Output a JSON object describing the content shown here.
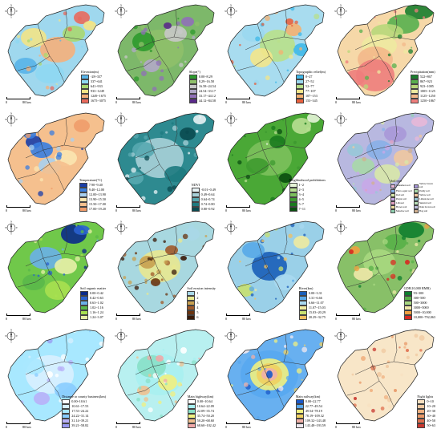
{
  "scale_labels": [
    "0",
    "80 km"
  ],
  "north_letters": [
    "N",
    "W",
    "E",
    "S"
  ],
  "panels": [
    {
      "id": "elevation",
      "title": "Elevation(m)",
      "classes": [
        "-28~337",
        "337~641",
        "641~933",
        "933~1249",
        "1249~1675",
        "1675~3075"
      ],
      "colors": [
        "#58b4e8",
        "#8ed8f2",
        "#a8d870",
        "#f2e486",
        "#f5b07a",
        "#e86a5c"
      ],
      "base": "#9fd8ee"
    },
    {
      "id": "slope",
      "title": "Slope(°)",
      "classes": [
        "0.00~8.29",
        "8.29~16.58",
        "16.58~24.54",
        "24.54~33.17",
        "33.17~44.12",
        "44.12~84.58"
      ],
      "colors": [
        "#2d9a2d",
        "#8fc06a",
        "#c8c8c8",
        "#b0a8c8",
        "#9070b8",
        "#5a2a8a"
      ],
      "base": "#7db86a"
    },
    {
      "id": "relief",
      "title": "Topographic relief(m)",
      "classes": [
        "0~27",
        "27~52",
        "52~77",
        "77~107",
        "107~153",
        "153~345"
      ],
      "colors": [
        "#3fb8e8",
        "#9ad8ef",
        "#b8e08a",
        "#f3e58a",
        "#f4b070",
        "#e8603e"
      ],
      "base": "#a8dcef"
    },
    {
      "id": "precip",
      "title": "Precipitation(mm)",
      "classes": [
        "522~867",
        "867~923",
        "923~1005",
        "1005~1125",
        "1125~1250",
        "1250~1867"
      ],
      "colors": [
        "#1a7e2e",
        "#58b04e",
        "#b8d87a",
        "#eeeaa0",
        "#f3b88a",
        "#ee7e7c"
      ],
      "base": "#f6d8a8"
    },
    {
      "id": "temp",
      "title": "Temperature(°C)",
      "classes": [
        "7.90~9.40",
        "9.40~12.00",
        "12.00~13.90",
        "13.90~15.50",
        "15.50~17.00",
        "17.00~19.20"
      ],
      "colors": [
        "#1a3ea8",
        "#3a7ee0",
        "#a8d0f0",
        "#fbe6b0",
        "#f5c08e",
        "#f09c6a"
      ],
      "base": "#f5c08e"
    },
    {
      "id": "ndvi",
      "title": "NDVI",
      "classes": [
        "-0.01~0.49",
        "0.49~0.64",
        "0.64~0.74",
        "0.74~0.80",
        "0.80~0.92"
      ],
      "colors": [
        "#e8f2f5",
        "#a8d0d8",
        "#58a8b0",
        "#1e7a80",
        "#0a4a50"
      ],
      "base": "#2e8a90"
    },
    {
      "id": "prohibit",
      "title": "Neighborhood prohibitions",
      "classes": [
        "1~2",
        "2~3",
        "3~4",
        "4~5",
        "5~7",
        "7~11"
      ],
      "colors": [
        "#e6f4d8",
        "#b8de92",
        "#7cc05c",
        "#3e9a30",
        "#1a7a1e",
        "#0a4e10"
      ],
      "base": "#4aa836"
    },
    {
      "id": "soil",
      "title": "Soil type",
      "classes": [
        "Cinnamon soil",
        "Yellow brown soil",
        "Fluvo-aquic soil",
        "Paddy soil",
        "Red soil",
        "Yellow soil",
        "Purple soil",
        "Limestone soil",
        "Lithosol",
        "Skeletal soil",
        "Brown soil",
        "Dark brown soil",
        "Meadow soil",
        "Bog soil"
      ],
      "colors": [
        "#e8b8d8",
        "#a898d8",
        "#88b0e8",
        "#a8d8a8",
        "#d8e8a8",
        "#f0c8a0",
        "#c8a8e8",
        "#98c8d8",
        "#e0a0c0",
        "#b8e0b8",
        "#f0e0a0",
        "#c0c0e0",
        "#90d0b0",
        "#d0b090"
      ],
      "base": "#b8b8e0"
    },
    {
      "id": "som",
      "title": "Soil organic matter",
      "classes": [
        "0.00~0.42",
        "0.42~0.63",
        "0.63~1.02",
        "1.02~1.16",
        "1.16~1.24",
        "1.24~3.07"
      ],
      "colors": [
        "#0a2a8a",
        "#2a62d0",
        "#6ab0e8",
        "#5ab84a",
        "#a8e050",
        "#e8f0a8"
      ],
      "base": "#70c84a"
    },
    {
      "id": "erosion",
      "title": "Soil erosion intensity",
      "classes": [
        "1",
        "2",
        "3",
        "4",
        "5",
        "6"
      ],
      "colors": [
        "#a8d8e8",
        "#e8e890",
        "#c8a050",
        "#a05a2a",
        "#6a3410",
        "#3a1a08"
      ],
      "base": "#a8d8e0"
    },
    {
      "id": "river",
      "title": "River(km)",
      "classes": [
        "0.00~3.31",
        "3.31~6.66",
        "6.66~11.07",
        "11.07~15.03",
        "15.03~20.29",
        "20.29~32.75"
      ],
      "colors": [
        "#1a5eb8",
        "#58a8e8",
        "#a8d8f0",
        "#eeeaa0",
        "#c8e070",
        "#f0c060"
      ],
      "base": "#9ad0e8"
    },
    {
      "id": "gdp",
      "title": "GDP(10,000 RMB)",
      "classes": [
        "93~300",
        "300~500",
        "500~3000",
        "3000~5000",
        "5000~10,000",
        "10,000~792,063"
      ],
      "colors": [
        "#0e7e2e",
        "#58b048",
        "#a8d880",
        "#f0e8a8",
        "#f0a040",
        "#d82820"
      ],
      "base": "#88c068"
    },
    {
      "id": "railway",
      "title": "Distance to county business(km)",
      "classes": [
        "0.00~10.61",
        "10.61~17.53",
        "17.53~24.22",
        "24.22~31.14",
        "31.14~39.21",
        "39.21~58.82"
      ],
      "colors": [
        "#ffffff",
        "#d8f0ff",
        "#a8e8ff",
        "#88ccff",
        "#b8b0f8",
        "#9898f0"
      ],
      "base": "#a8e8ff"
    },
    {
      "id": "highway",
      "title": "Main highway(km)",
      "classes": [
        "0.00~10.64",
        "10.64~22.09",
        "22.09~35.74",
        "35.74~50.20",
        "50.20~68.60",
        "68.60~102.42"
      ],
      "colors": [
        "#ffffff",
        "#a8f0f0",
        "#88e0c8",
        "#f0f080",
        "#f0c090",
        "#f0a8a8"
      ],
      "base": "#b8f0f0"
    },
    {
      "id": "road",
      "title": "Main railway(km)",
      "classes": [
        "0.00~22.77",
        "22.77~49.54",
        "49.54~78.19",
        "78.19~109.32",
        "109.32~143.48",
        "143.48~193.59"
      ],
      "colors": [
        "#1a58c8",
        "#58a8f0",
        "#f0f080",
        "#f0d060",
        "#f0b0a8",
        "#f0e8f0"
      ],
      "base": "#68b0f0"
    },
    {
      "id": "lights",
      "title": "Night lights",
      "classes": [
        "0~10",
        "10~20",
        "20~30",
        "30~40",
        "40~50",
        "50~63"
      ],
      "colors": [
        "#f8e0c0",
        "#f0c8a0",
        "#f0b080",
        "#e89868",
        "#e07050",
        "#c83830"
      ],
      "base": "#f8e6c8"
    }
  ]
}
